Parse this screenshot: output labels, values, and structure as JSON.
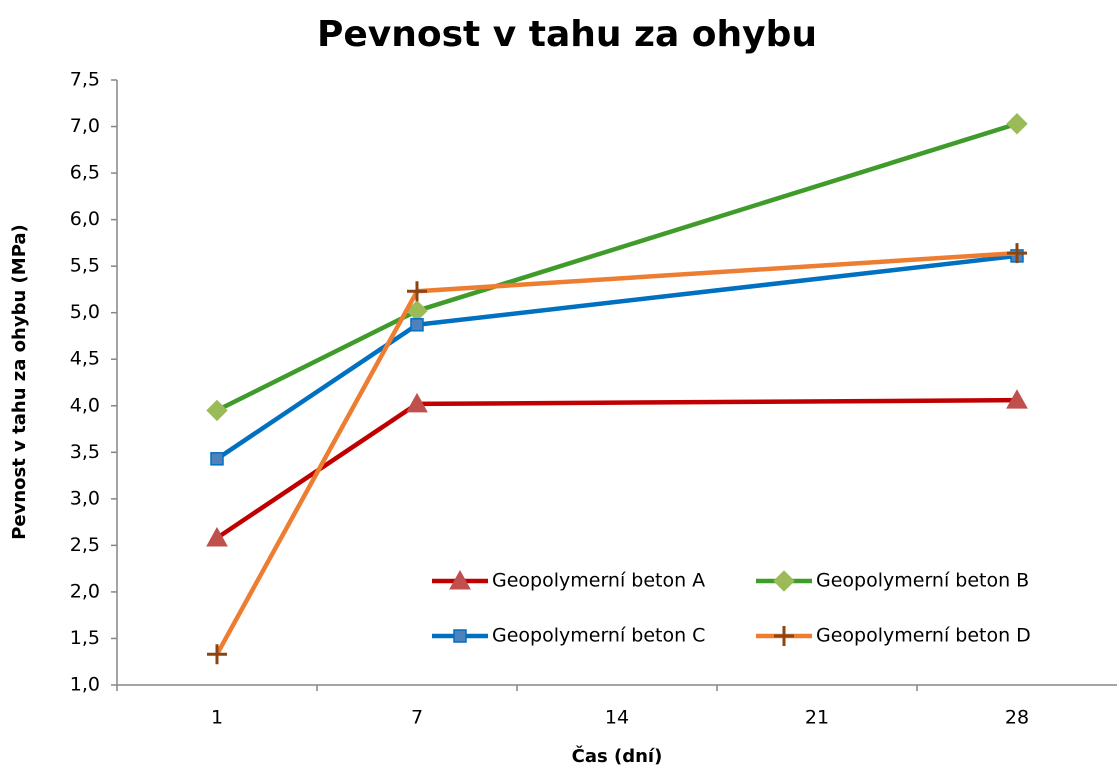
{
  "chart_data": {
    "type": "line",
    "title": "Pevnost v tahu za ohybu",
    "x_label": "Čas (dní)",
    "y_label": "Pevnost v tahu za ohybu (MPa)",
    "categories": [
      1,
      7,
      14,
      21,
      28
    ],
    "ylim": [
      1,
      7.5
    ],
    "yticks": [
      {
        "value": 1,
        "label": "1,0"
      },
      {
        "value": 1.5,
        "label": "1,5"
      },
      {
        "value": 2,
        "label": "2,0"
      },
      {
        "value": 2.5,
        "label": "2,5"
      },
      {
        "value": 3,
        "label": "3,0"
      },
      {
        "value": 3.5,
        "label": "3,5"
      },
      {
        "value": 4,
        "label": "4,0"
      },
      {
        "value": 4.5,
        "label": "4,5"
      },
      {
        "value": 5,
        "label": "5,0"
      },
      {
        "value": 5.5,
        "label": "5,5"
      },
      {
        "value": 6,
        "label": "6,0"
      },
      {
        "value": 6.5,
        "label": "6,5"
      },
      {
        "value": 7,
        "label": "7,0"
      },
      {
        "value": 7.5,
        "label": "7,5"
      }
    ],
    "grid": false,
    "legend": "bottom-right",
    "series": [
      {
        "name": "Geopolymerní beton A",
        "color": "#c00000",
        "marker_color": "#c0504d",
        "marker": "triangle",
        "x": [
          1,
          7,
          28
        ],
        "values": [
          2.58,
          4.02,
          4.06
        ]
      },
      {
        "name": "Geopolymerní beton B",
        "color": "#3f9b2a",
        "marker_color": "#9bbb59",
        "marker": "diamond",
        "x": [
          1,
          7,
          28
        ],
        "values": [
          3.95,
          5.02,
          7.03
        ]
      },
      {
        "name": "Geopolymerní beton C",
        "color": "#0070c0",
        "marker_color": "#4f81bd",
        "marker": "square",
        "x": [
          1,
          7,
          28
        ],
        "values": [
          3.43,
          4.87,
          5.61
        ]
      },
      {
        "name": "Geopolymerní beton D",
        "color": "#ed7d31",
        "marker_color": "#8b4513",
        "marker": "plus",
        "x": [
          1,
          7,
          28
        ],
        "values": [
          1.33,
          5.23,
          5.64
        ]
      }
    ]
  }
}
